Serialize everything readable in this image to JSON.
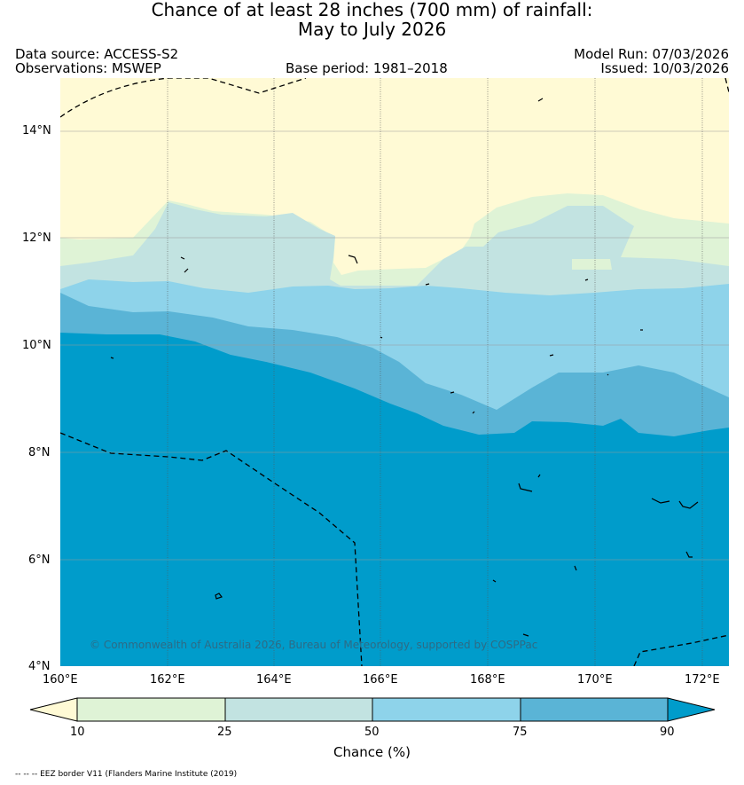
{
  "title": {
    "line1": "Chance of at least 28 inches (700  mm) of rainfall:",
    "line2": "May to July 2026"
  },
  "header": {
    "data_source": "Data source: ACCESS-S2",
    "observations": "Observations: MSWEP",
    "base_period": "Base period: 1981–2018",
    "model_run": "Model Run: 07/03/2026",
    "issued": "Issued: 10/03/2026"
  },
  "map": {
    "lat_labels": [
      "14°N",
      "12°N",
      "10°N",
      "8°N",
      "6°N",
      "4°N"
    ],
    "lon_labels": [
      "160°E",
      "162°E",
      "164°E",
      "166°E",
      "168°E",
      "170°E",
      "172°E"
    ],
    "copyright": "© Commonwealth of Australia 2026, Bureau of Meteorology, supported by COSPPac"
  },
  "colorbar": {
    "ticks": [
      "10",
      "25",
      "50",
      "75",
      "90"
    ],
    "label": "Chance (%)",
    "colors": [
      "#fffad5",
      "#dff3d6",
      "#c2e3e1",
      "#8ed3ea",
      "#5ab4d6",
      "#009ccb"
    ]
  },
  "footer": {
    "eez_legend": "-- -- -- EEZ border V11 (Flanders Marine Institute (2019)"
  }
}
